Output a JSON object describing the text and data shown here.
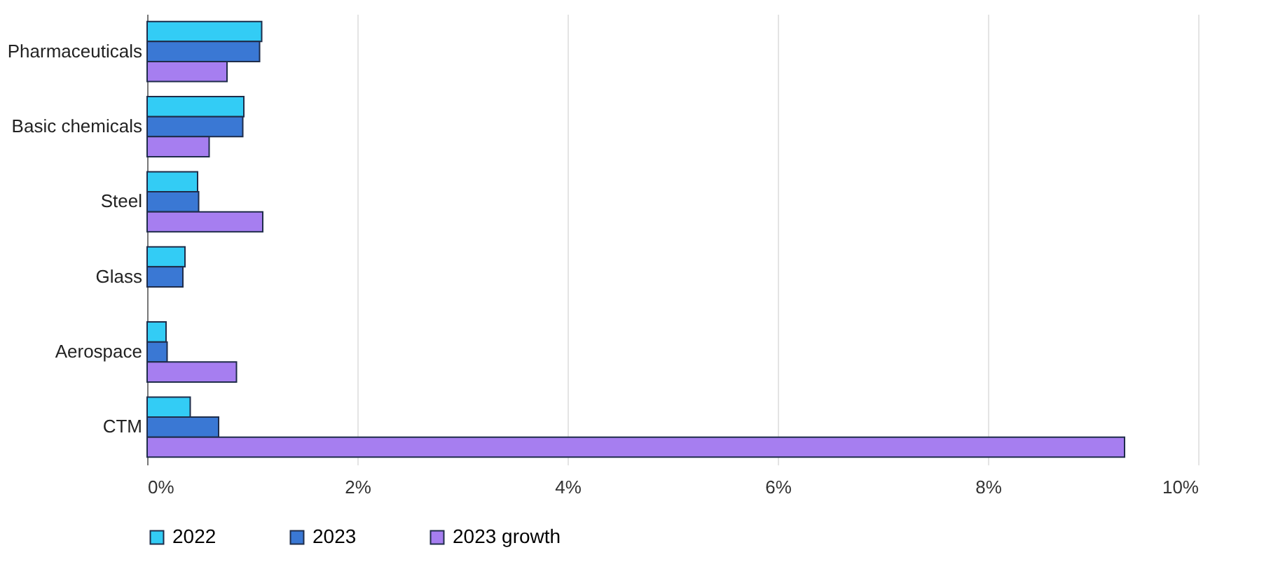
{
  "chart_data": {
    "type": "bar",
    "orientation": "horizontal",
    "categories": [
      "Pharmaceuticals",
      "Basic chemicals",
      "Steel",
      "Glass",
      "Aerospace",
      "CTM"
    ],
    "series": [
      {
        "name": "2022",
        "color": "#33ccf5",
        "values": [
          1.09,
          0.92,
          0.48,
          0.36,
          0.18,
          0.41
        ]
      },
      {
        "name": "2023",
        "color": "#3a78d4",
        "values": [
          1.07,
          0.91,
          0.49,
          0.34,
          0.19,
          0.68
        ]
      },
      {
        "name": "2023 growth",
        "color": "#a67ef0",
        "values": [
          0.76,
          0.59,
          1.1,
          null,
          0.85,
          9.3
        ]
      }
    ],
    "xlim": [
      0,
      10
    ],
    "xticks": [
      {
        "value": 0,
        "label": "0%"
      },
      {
        "value": 2,
        "label": "2%"
      },
      {
        "value": 4,
        "label": "4%"
      },
      {
        "value": 6,
        "label": "6%"
      },
      {
        "value": 8,
        "label": "8%"
      },
      {
        "value": 10,
        "label": "10%"
      }
    ],
    "grid": "x",
    "legend": "bottom"
  }
}
